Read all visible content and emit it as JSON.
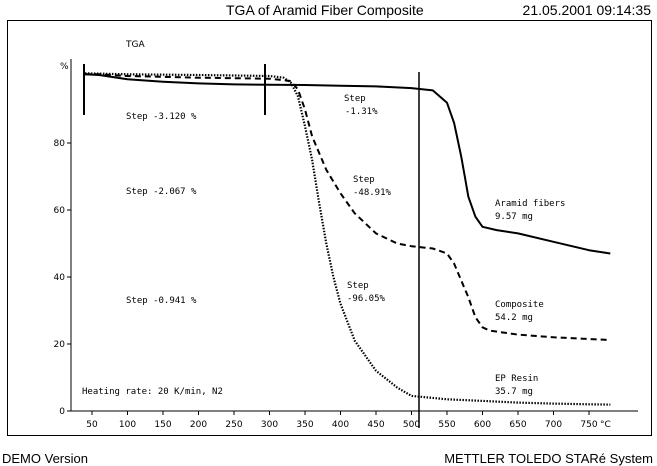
{
  "header": {
    "title": "TGA of Aramid Fiber Composite",
    "timestamp": "21.05.2001 09:14:35"
  },
  "footer": {
    "left": "DEMO Version",
    "right": "METTLER TOLEDO STARé System"
  },
  "chart_data": {
    "type": "line",
    "title": "TGA",
    "ylabel": "%",
    "xlabel": "°C",
    "xlim": [
      30,
      820
    ],
    "ylim": [
      0,
      102
    ],
    "x_ticks": [
      50,
      100,
      150,
      200,
      250,
      300,
      350,
      400,
      450,
      500,
      550,
      600,
      650,
      700,
      750
    ],
    "y_ticks": [
      0,
      20,
      40,
      60,
      80
    ],
    "grid": false,
    "series": [
      {
        "name": "Aramid fibers",
        "sample_mass": "9.57 mg",
        "style": "solid",
        "x": [
          40,
          60,
          100,
          150,
          200,
          250,
          300,
          350,
          400,
          450,
          500,
          530,
          550,
          560,
          570,
          575,
          580,
          590,
          600,
          620,
          650,
          700,
          750,
          780
        ],
        "y": [
          100.5,
          100.3,
          99,
          98.3,
          97.8,
          97.5,
          97.4,
          97.3,
          97.1,
          96.9,
          96.4,
          95.7,
          92,
          86,
          76,
          70,
          64,
          58,
          55,
          54,
          53,
          50.5,
          48,
          47
        ]
      },
      {
        "name": "Composite",
        "sample_mass": "54.2 mg",
        "style": "dashed",
        "x": [
          40,
          60,
          100,
          200,
          300,
          330,
          340,
          350,
          360,
          380,
          400,
          420,
          450,
          480,
          500,
          530,
          550,
          560,
          570,
          580,
          590,
          600,
          610,
          650,
          700,
          750,
          780
        ],
        "y": [
          100.5,
          100.5,
          100,
          99.5,
          99.2,
          98.5,
          96,
          90,
          82,
          72,
          65,
          59,
          53,
          50,
          49.2,
          48.5,
          47,
          44,
          39,
          34,
          28,
          25,
          24,
          22.8,
          22,
          21.5,
          21.2
        ]
      },
      {
        "name": "EP Resin",
        "sample_mass": "35.7 mg",
        "style": "dotted",
        "x": [
          40,
          100,
          200,
          300,
          320,
          330,
          340,
          350,
          360,
          370,
          380,
          390,
          400,
          420,
          450,
          480,
          500,
          550,
          600,
          650,
          700,
          750,
          780
        ],
        "y": [
          100.8,
          100.5,
          100.3,
          100,
          99.5,
          98,
          94,
          85,
          75,
          62,
          50,
          40,
          32,
          21,
          12,
          7,
          4.5,
          3.5,
          3,
          2.5,
          2.2,
          2,
          1.9
        ]
      }
    ],
    "annotations": [
      "Step -3.120 %",
      "Step -2.067 %",
      "Step -0.941 %",
      "Step -1.31%",
      "Step -48.91%",
      "Step -96.05%",
      "Heating rate: 20 K/min, N2"
    ]
  }
}
